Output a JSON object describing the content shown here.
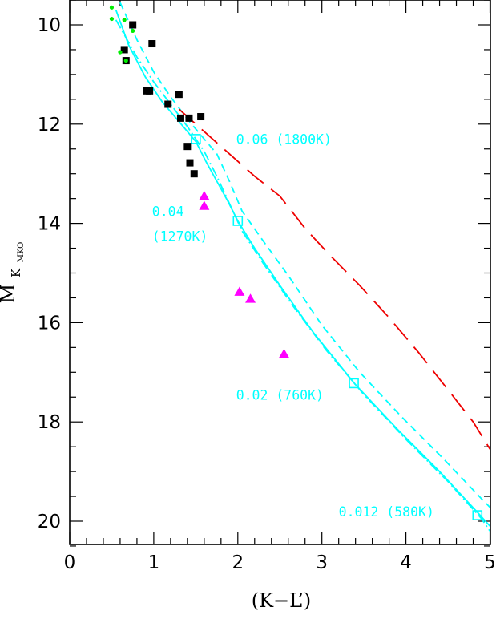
{
  "chart_data": {
    "type": "scatter",
    "x_label": "(K−L’)",
    "y_label_main": "M",
    "y_label_sub": "K",
    "y_label_subsub": "MKO",
    "xlim": [
      0,
      5
    ],
    "ylim": [
      20.5,
      9.5
    ],
    "y_inverted": true,
    "grid": false,
    "legend": "none",
    "x_major_ticks": [
      0,
      1,
      2,
      3,
      4,
      5
    ],
    "x_major_labels": [
      "0",
      "1",
      "2",
      "3",
      "4",
      "5"
    ],
    "x_minor_step": 0.2,
    "y_major_ticks": [
      10,
      12,
      14,
      16,
      18,
      20
    ],
    "y_major_labels": [
      "10",
      "12",
      "14",
      "16",
      "18",
      "20"
    ],
    "y_minor_step": 0.5,
    "colors": {
      "black_points": "#000000",
      "green_points": "#00ee00",
      "magenta_points": "#ff00ff",
      "model_cyan": "#00ffff",
      "model_red": "#ee0000"
    },
    "series": [
      {
        "marker": "square",
        "color": "#000000",
        "points": [
          [
            0.65,
            10.5
          ],
          [
            0.67,
            10.72
          ],
          [
            0.75,
            10.0
          ],
          [
            0.98,
            10.38
          ],
          [
            0.92,
            11.33
          ],
          [
            0.95,
            11.33
          ],
          [
            1.17,
            11.6
          ],
          [
            1.3,
            11.4
          ],
          [
            1.32,
            11.88
          ],
          [
            1.42,
            11.88
          ],
          [
            1.56,
            11.85
          ],
          [
            1.4,
            12.45
          ],
          [
            1.43,
            12.78
          ],
          [
            1.48,
            13.0
          ]
        ]
      },
      {
        "marker": "dot",
        "color": "#00ee00",
        "points": [
          [
            0.5,
            9.65
          ],
          [
            0.5,
            9.88
          ],
          [
            0.6,
            10.55
          ],
          [
            0.65,
            9.9
          ],
          [
            0.67,
            10.72
          ],
          [
            0.75,
            10.12
          ]
        ]
      },
      {
        "marker": "triangle",
        "color": "#ff00ff",
        "points": [
          [
            1.6,
            13.45
          ],
          [
            1.6,
            13.65
          ],
          [
            2.02,
            15.38
          ],
          [
            2.15,
            15.52
          ],
          [
            2.55,
            16.63
          ]
        ]
      }
    ],
    "model_curves": [
      {
        "style": "solid",
        "color": "#00ffff",
        "points": [
          [
            0.55,
            9.7
          ],
          [
            0.7,
            10.4
          ],
          [
            0.9,
            11.05
          ],
          [
            1.1,
            11.55
          ],
          [
            1.3,
            11.95
          ],
          [
            1.5,
            12.35
          ],
          [
            1.62,
            12.75
          ],
          [
            1.75,
            13.15
          ],
          [
            1.88,
            13.55
          ],
          [
            2.0,
            13.95
          ],
          [
            2.2,
            14.5
          ],
          [
            2.5,
            15.25
          ],
          [
            2.9,
            16.2
          ],
          [
            3.4,
            17.25
          ],
          [
            3.9,
            18.15
          ],
          [
            4.4,
            19.0
          ],
          [
            4.85,
            19.82
          ],
          [
            5.0,
            20.1
          ]
        ]
      },
      {
        "style": "dashed",
        "color": "#00ffff",
        "points": [
          [
            0.6,
            9.55
          ],
          [
            0.8,
            10.3
          ],
          [
            1.0,
            10.95
          ],
          [
            1.2,
            11.45
          ],
          [
            1.4,
            11.9
          ],
          [
            1.55,
            12.2
          ],
          [
            1.75,
            12.6
          ],
          [
            1.9,
            13.15
          ],
          [
            2.05,
            13.75
          ],
          [
            2.3,
            14.35
          ],
          [
            2.6,
            15.05
          ],
          [
            3.0,
            16.05
          ],
          [
            3.45,
            17.0
          ],
          [
            3.95,
            17.9
          ],
          [
            4.45,
            18.75
          ],
          [
            4.9,
            19.55
          ],
          [
            5.0,
            19.72
          ]
        ]
      },
      {
        "style": "dash-dot",
        "color": "#00ffff",
        "points": [
          [
            0.55,
            9.9
          ],
          [
            0.8,
            10.65
          ],
          [
            1.0,
            11.15
          ],
          [
            1.2,
            11.6
          ],
          [
            1.4,
            12.05
          ],
          [
            1.6,
            12.55
          ],
          [
            1.75,
            13.05
          ],
          [
            1.9,
            13.6
          ],
          [
            2.05,
            14.15
          ],
          [
            2.3,
            14.8
          ],
          [
            2.65,
            15.65
          ],
          [
            3.05,
            16.55
          ],
          [
            3.5,
            17.45
          ],
          [
            4.0,
            18.35
          ],
          [
            4.5,
            19.2
          ],
          [
            4.9,
            19.95
          ],
          [
            5.0,
            20.2
          ]
        ]
      },
      {
        "style": "long-dash",
        "color": "#ee0000",
        "points": [
          [
            1.3,
            11.7
          ],
          [
            1.6,
            12.15
          ],
          [
            1.9,
            12.6
          ],
          [
            2.2,
            13.05
          ],
          [
            2.5,
            13.45
          ],
          [
            2.8,
            14.1
          ],
          [
            3.1,
            14.65
          ],
          [
            3.45,
            15.25
          ],
          [
            3.8,
            15.9
          ],
          [
            4.15,
            16.6
          ],
          [
            4.5,
            17.35
          ],
          [
            4.8,
            18.0
          ],
          [
            5.0,
            18.55
          ]
        ]
      }
    ],
    "iso_mass_markers": [
      [
        1.5,
        12.3
      ],
      [
        2.0,
        13.95
      ],
      [
        3.38,
        17.22
      ],
      [
        4.85,
        19.88
      ]
    ],
    "annotations": [
      {
        "text": "0.06 (1800K)",
        "x": 1.98,
        "y": 12.4
      },
      {
        "text": "0.04",
        "x": 0.98,
        "y": 13.85
      },
      {
        "text": "(1270K)",
        "x": 0.98,
        "y": 14.35
      },
      {
        "text": "0.02 (760K)",
        "x": 1.98,
        "y": 17.55
      },
      {
        "text": "0.012 (580K)",
        "x": 3.2,
        "y": 19.9
      }
    ]
  }
}
